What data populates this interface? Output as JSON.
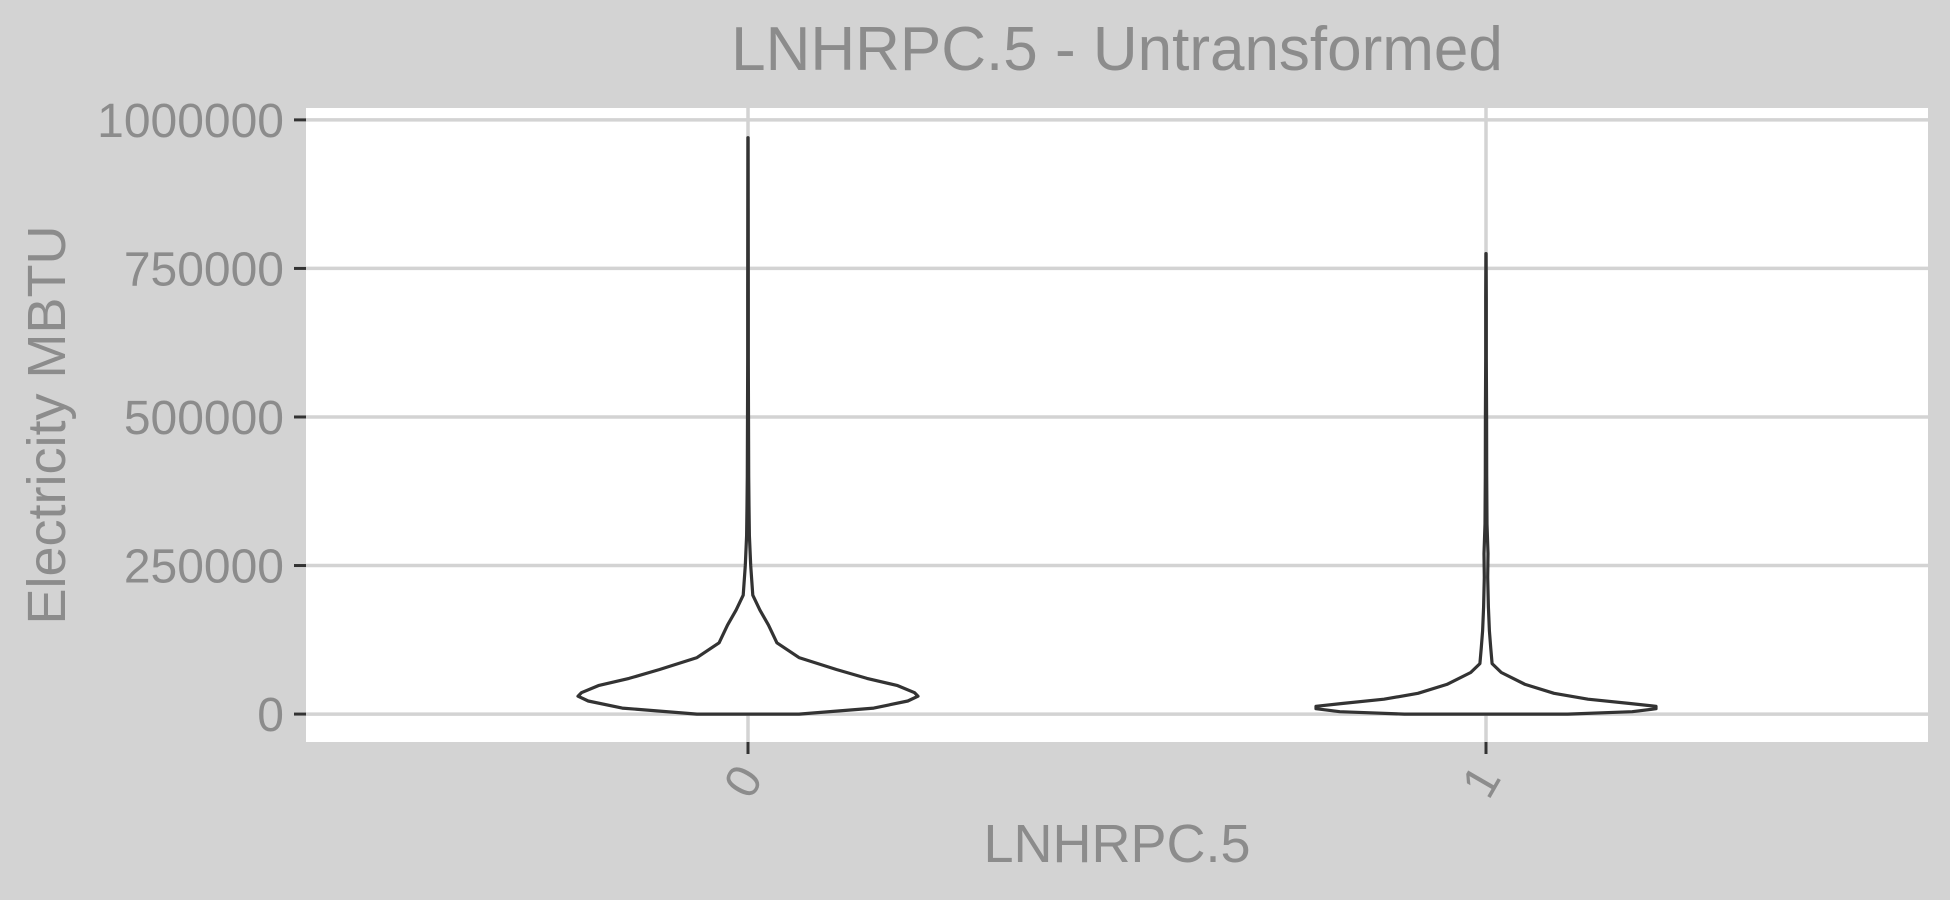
{
  "chart_data": {
    "type": "violin",
    "title": "LNHRPC.5 - Untransformed",
    "xlabel": "LNHRPC.5",
    "ylabel": "Electricity MBTU",
    "categories": [
      "0",
      "1"
    ],
    "ylim": [
      -47000,
      1020000
    ],
    "yticks": [
      0,
      250000,
      500000,
      750000,
      1000000
    ],
    "ytick_labels": [
      "0",
      "250000",
      "500000",
      "750000",
      "1000000"
    ],
    "grid": true,
    "legend": "none",
    "colors": {
      "panel_background": "#ffffff",
      "plot_background": "#d3d3d3",
      "gridline": "#d3d3d3",
      "outline": "#333333",
      "text": "#8c8c8c"
    },
    "series": [
      {
        "category": "0",
        "ymin": 0,
        "ymax": 970000,
        "profile": [
          [
            0,
            0.15
          ],
          [
            10000,
            0.37
          ],
          [
            22000,
            0.47
          ],
          [
            30000,
            0.5
          ],
          [
            36000,
            0.49
          ],
          [
            48000,
            0.44
          ],
          [
            60000,
            0.35
          ],
          [
            75000,
            0.26
          ],
          [
            95000,
            0.15
          ],
          [
            120000,
            0.085
          ],
          [
            150000,
            0.06
          ],
          [
            175000,
            0.035
          ],
          [
            200000,
            0.014
          ],
          [
            250000,
            0.008
          ],
          [
            300000,
            0.004
          ],
          [
            350000,
            0.003
          ],
          [
            400000,
            0.002
          ],
          [
            500000,
            0.0015
          ],
          [
            600000,
            0.001
          ],
          [
            700000,
            0.001
          ],
          [
            850000,
            0.0006
          ],
          [
            970000,
            0.0002
          ]
        ]
      },
      {
        "category": "1",
        "ymin": 0,
        "ymax": 775000,
        "profile": [
          [
            0,
            0.24
          ],
          [
            4000,
            0.43
          ],
          [
            9000,
            0.5
          ],
          [
            13000,
            0.5
          ],
          [
            18000,
            0.42
          ],
          [
            25000,
            0.3
          ],
          [
            35000,
            0.2
          ],
          [
            50000,
            0.115
          ],
          [
            70000,
            0.045
          ],
          [
            85000,
            0.018
          ],
          [
            110000,
            0.014
          ],
          [
            140000,
            0.01
          ],
          [
            180000,
            0.007
          ],
          [
            230000,
            0.005
          ],
          [
            270000,
            0.006
          ],
          [
            320000,
            0.003
          ],
          [
            400000,
            0.002
          ],
          [
            500000,
            0.0018
          ],
          [
            600000,
            0.001
          ],
          [
            700000,
            0.0008
          ],
          [
            775000,
            0.0002
          ]
        ]
      }
    ]
  }
}
